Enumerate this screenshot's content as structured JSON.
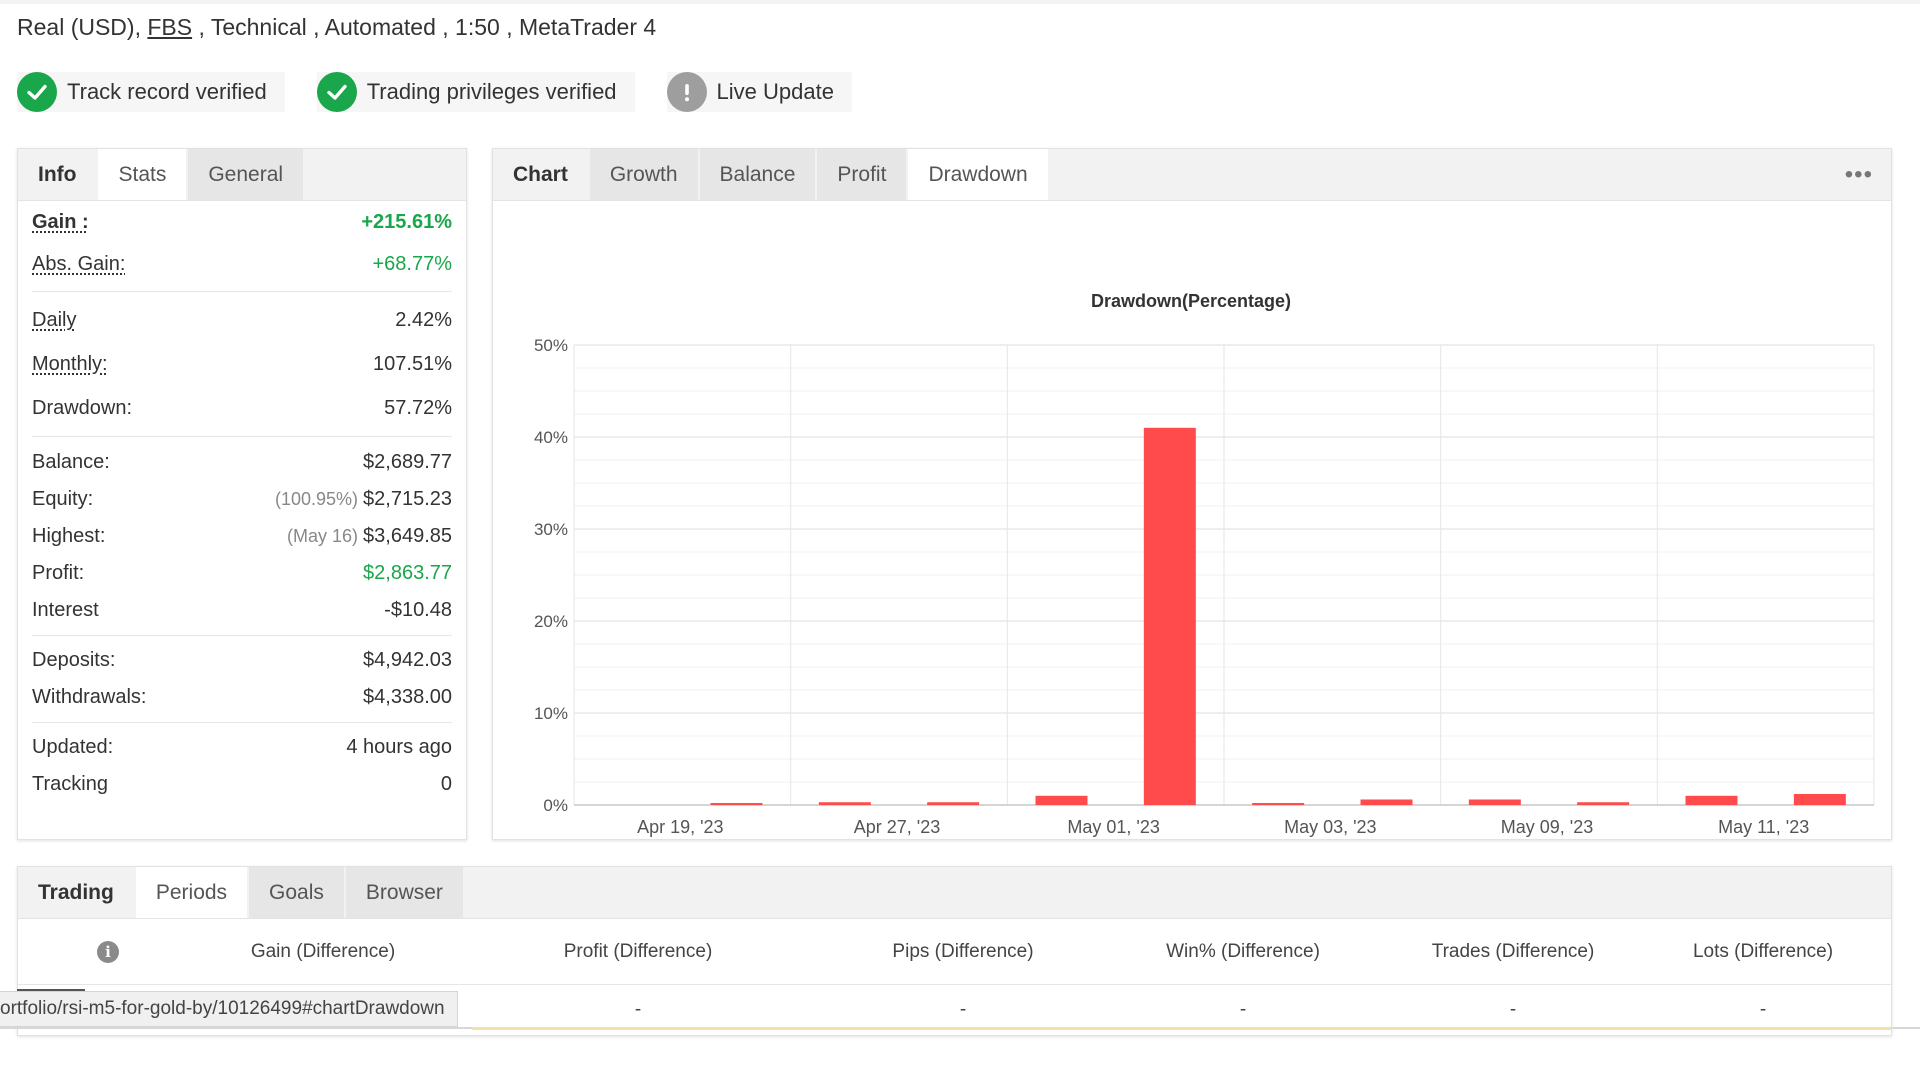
{
  "account": {
    "type": "Real (USD),",
    "broker": "FBS",
    "rest": " , Technical , Automated , 1:50 , MetaTrader 4"
  },
  "badges": [
    {
      "label": "Track record verified",
      "icon": "check-icon",
      "status": "ok"
    },
    {
      "label": "Trading privileges verified",
      "icon": "check-icon",
      "status": "ok"
    },
    {
      "label": "Live Update",
      "icon": "exclamation-icon",
      "status": "warn"
    }
  ],
  "info_tabs": [
    "Info",
    "Stats",
    "General"
  ],
  "info": {
    "gain_label": "Gain :",
    "gain_value": "+215.61%",
    "abs_gain_label": "Abs. Gain:",
    "abs_gain_value": "+68.77%",
    "daily_label": "Daily",
    "daily_value": "2.42%",
    "monthly_label": "Monthly:",
    "monthly_value": "107.51%",
    "drawdown_label": "Drawdown:",
    "drawdown_value": "57.72%",
    "balance_label": "Balance:",
    "balance_value": "$2,689.77",
    "equity_label": "Equity:",
    "equity_sub": "(100.95%)",
    "equity_value": "$2,715.23",
    "highest_label": "Highest:",
    "highest_sub": "(May 16)",
    "highest_value": "$3,649.85",
    "profit_label": "Profit:",
    "profit_value": "$2,863.77",
    "interest_label": "Interest",
    "interest_value": "-$10.48",
    "deposits_label": "Deposits:",
    "deposits_value": "$4,942.03",
    "withdrawals_label": "Withdrawals:",
    "withdrawals_value": "$4,338.00",
    "updated_label": "Updated:",
    "updated_value": "4 hours ago",
    "tracking_label": "Tracking",
    "tracking_value": "0"
  },
  "chart_tabs": [
    "Chart",
    "Growth",
    "Balance",
    "Profit",
    "Drawdown"
  ],
  "more_label": "•••",
  "chart_data": {
    "type": "bar",
    "title": "Drawdown(Percentage)",
    "xlabel": "",
    "ylabel": "",
    "ylim": [
      0,
      50
    ],
    "yticks": [
      "0%",
      "10%",
      "20%",
      "30%",
      "40%",
      "50%"
    ],
    "x_tick_labels": [
      "Apr 19, '23",
      "Apr 27, '23",
      "May 01, '23",
      "May 03, '23",
      "May 09, '23",
      "May 11, '23"
    ],
    "values": [
      0.0,
      0.15,
      0.3,
      0.3,
      1.0,
      41.0,
      0.1,
      0.6,
      0.6,
      0.3,
      1.0,
      1.2
    ],
    "bar_color": "#ff4b4b",
    "grid": true
  },
  "trading_tabs": [
    "Trading",
    "Periods",
    "Goals",
    "Browser"
  ],
  "trading_table": {
    "info_icon": "i",
    "headers": [
      "Gain (Difference)",
      "Profit (Difference)",
      "Pips (Difference)",
      "Win% (Difference)",
      "Trades (Difference)",
      "Lots (Difference)"
    ],
    "row": [
      "-",
      "-",
      "-",
      "-",
      "-",
      "-"
    ]
  },
  "status_url": "ortfolio/rsi-m5-for-gold-by/10126499#chartDrawdown"
}
